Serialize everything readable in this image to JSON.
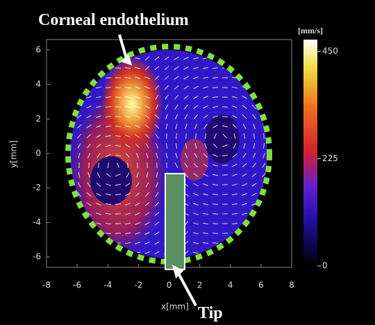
{
  "annotations": {
    "top": "Corneal endothelium",
    "bottom": "Tip"
  },
  "axes": {
    "x": {
      "label": "x[mm]",
      "lim": [
        -8,
        8
      ],
      "ticks": [
        -8,
        -6,
        -4,
        -2,
        0,
        2,
        4,
        6,
        8
      ]
    },
    "y": {
      "label": "y[mm]",
      "lim": [
        -6.6,
        6.6
      ],
      "ticks": [
        -6,
        -4,
        -2,
        0,
        2,
        4,
        6
      ]
    }
  },
  "colorbar": {
    "unit": "[mm/s]",
    "lim": [
      0,
      475
    ],
    "ticks": [
      0,
      225,
      450
    ]
  }
}
